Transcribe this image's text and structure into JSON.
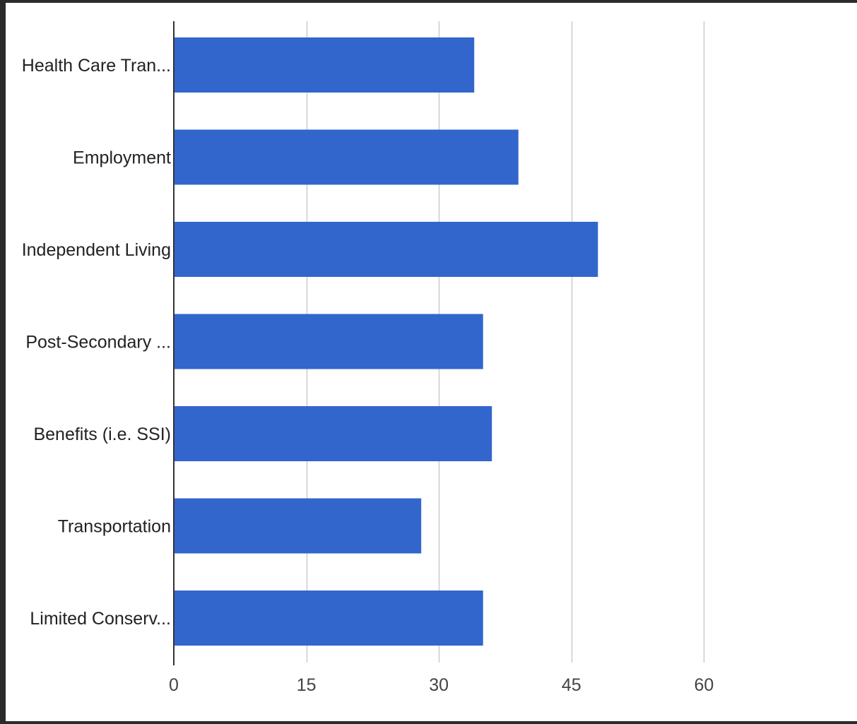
{
  "chart_data": {
    "type": "bar",
    "orientation": "horizontal",
    "title": "",
    "xlabel": "",
    "ylabel": "",
    "categories": [
      "Health Care Tran...",
      "Employment",
      "Independent Living",
      "Post-Secondary ...",
      "Benefits (i.e. SSI)",
      "Transportation",
      "Limited Conserv..."
    ],
    "values": [
      34,
      39,
      48,
      35,
      36,
      28,
      35
    ],
    "xlim": [
      0,
      75
    ],
    "xticks": [
      "0",
      "15",
      "30",
      "45",
      "60"
    ],
    "xtick_values": [
      0,
      15,
      30,
      45,
      60
    ],
    "grid": "vertical",
    "legend": "none",
    "colors": {
      "bar": "#3366cc",
      "grid": "#cccccc",
      "axis": "#333333",
      "frame": "#2b2b2b"
    }
  }
}
